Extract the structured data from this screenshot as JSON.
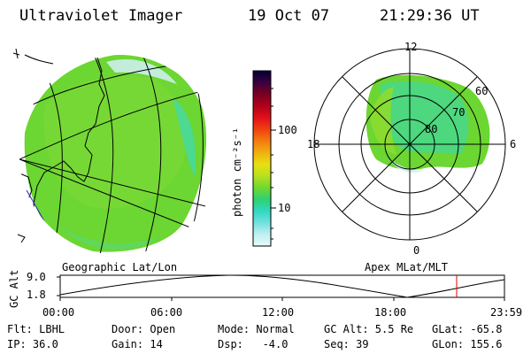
{
  "header": {
    "instrument": "Ultraviolet Imager",
    "date": "19 Oct 07",
    "time": "21:29:36 UT"
  },
  "left_panel": {
    "caption": "Geographic Lat/Lon"
  },
  "right_panel": {
    "caption": "Apex MLat/MLT",
    "mlt_labels": {
      "top": "12",
      "left": "18",
      "right": "6",
      "bottom": "0"
    },
    "mlat_labels": [
      "60",
      "70",
      "80"
    ]
  },
  "colorbar": {
    "unit_label": "photon cm⁻²s⁻¹",
    "ticks": [
      "100",
      "10"
    ],
    "colors": [
      "#000033",
      "#3a0040",
      "#7a0020",
      "#b0001a",
      "#e0101a",
      "#f04010",
      "#f47a10",
      "#f0b010",
      "#e8e010",
      "#b8e020",
      "#70d830",
      "#30d070",
      "#30d8c0",
      "#70e0e0",
      "#c0f0f0",
      "#e8fafa"
    ]
  },
  "altitude_plot": {
    "ylabel": "GC Alt",
    "yticks": [
      "9.0",
      "1.8"
    ],
    "xticks": [
      "00:00",
      "06:00",
      "12:00",
      "18:00",
      "23:59"
    ],
    "current_marker_color": "#e00000"
  },
  "footer": {
    "row1": {
      "filter": "Flt: LBHL",
      "door": "Door: Open",
      "mode": "Mode: Normal",
      "gc_alt": "GC Alt: 5.5 Re",
      "glat": "GLat: -65.8"
    },
    "row2": {
      "ip": "IP: 36.0",
      "gain": "Gain: 14",
      "dsp": "Dsp:   -4.0",
      "seq": "Seq: 39",
      "glon": "GLon: 155.6"
    }
  }
}
